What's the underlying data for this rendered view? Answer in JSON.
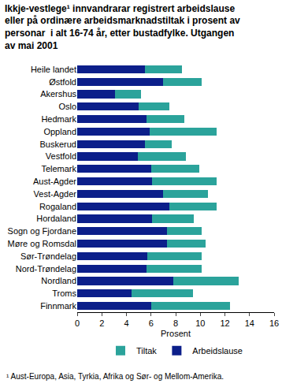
{
  "chart_data": {
    "type": "bar",
    "orientation": "horizontal",
    "stacked": true,
    "title": "Ikkje-vestlege¹ innvandrarar registrert arbeidslause\neller på ordinære arbeidsmarknadstiltak i prosent av\npersonar  i alt 16-74 år, etter bustadfylke. Utgangen\nav mai 2001",
    "x_label": "Prosent",
    "note": "¹ Aust-Europa, Asia, Tyrkia, Afrika og Sør- og Mellom-Amerika.",
    "categories": [
      "Heile landet",
      "Østfold",
      "Akershus",
      "Oslo",
      "Hedmark",
      "Oppland",
      "Buskerud",
      "Vestfold",
      "Telemark",
      "Aust-Agder",
      "Vest-Agder",
      "Rogaland",
      "Hordaland",
      "Sogn og Fjordane",
      "Møre og Romsdal",
      "Sør-Trøndelag",
      "Nord-Trøndelag",
      "Nordland",
      "Troms",
      "Finnmark"
    ],
    "series": [
      {
        "name": "Arbeidslause",
        "color": "#0c1f8a",
        "values": [
          5.5,
          7.0,
          3.1,
          5.0,
          5.6,
          5.9,
          5.5,
          4.9,
          6.0,
          6.1,
          7.0,
          7.5,
          6.1,
          7.3,
          7.3,
          5.7,
          5.6,
          7.8,
          4.4,
          6.0
        ]
      },
      {
        "name": "Tiltak",
        "color": "#2ba39b",
        "values": [
          3.0,
          3.1,
          2.1,
          2.5,
          3.1,
          5.4,
          2.2,
          3.9,
          3.9,
          5.2,
          3.6,
          3.8,
          3.4,
          2.8,
          3.1,
          4.4,
          4.5,
          5.3,
          5.0,
          6.4
        ]
      }
    ],
    "xlim": [
      0,
      16
    ],
    "xticks": [
      0,
      2,
      4,
      6,
      8,
      10,
      12,
      14,
      16
    ],
    "grid": false,
    "legend": "bottom"
  }
}
